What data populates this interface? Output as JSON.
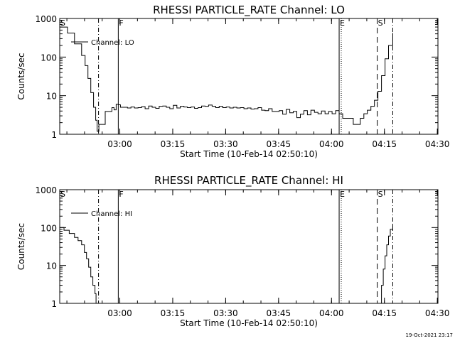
{
  "footer_timestamp": "19-Oct-2021 23:17",
  "chart_data": [
    {
      "type": "line",
      "title": "RHESSI PARTICLE_RATE Channel: LO",
      "xlabel": "Start Time (10-Feb-14 02:50:10)",
      "ylabel": "Counts/sec",
      "yscale": "log",
      "ylim": [
        1,
        1000
      ],
      "y_ticks": [
        "1",
        "10",
        "100",
        "1000"
      ],
      "x_range_minutes": [
        -7.2,
        100.0
      ],
      "x_ticks": [
        "03:00",
        "03:15",
        "03:30",
        "03:45",
        "04:00",
        "04:15",
        "04:30"
      ],
      "legend": {
        "label": "Channel: LO",
        "position": "top-left"
      },
      "markers": [
        {
          "label": "S",
          "x": -7.2,
          "style": "none"
        },
        {
          "label": "",
          "x": 3.8,
          "style": "dashdot"
        },
        {
          "label": "F",
          "x": 9.4,
          "style": "solid"
        },
        {
          "label": "E",
          "x": 72.0,
          "style": "solid"
        },
        {
          "label": "",
          "x": 72.6,
          "style": "dotted"
        },
        {
          "label": "S",
          "x": 82.8,
          "style": "dashed"
        },
        {
          "label": "",
          "x": 87.2,
          "style": "dashdot"
        }
      ],
      "series": [
        {
          "name": "Channel: LO",
          "x": [
            -7.2,
            -5.0,
            -3.0,
            -1.0,
            0.0,
            0.8,
            1.6,
            2.4,
            3.0,
            3.4,
            3.9,
            4.3,
            4.9,
            5.4,
            5.7,
            7.0,
            7.6,
            8.2,
            8.8,
            9.4,
            10.0,
            11.0,
            12.0,
            13.0,
            14.0,
            15.0,
            16.0,
            17.0,
            18.0,
            19.0,
            20.0,
            21.0,
            22.0,
            23.0,
            24.0,
            25.0,
            26.0,
            27.0,
            28.0,
            29.0,
            30.0,
            31.0,
            32.0,
            33.0,
            34.0,
            35.0,
            36.0,
            37.0,
            38.0,
            39.0,
            40.0,
            41.0,
            42.0,
            43.0,
            44.0,
            45.0,
            46.0,
            47.0,
            48.0,
            49.0,
            50.0,
            51.0,
            52.0,
            53.0,
            54.0,
            55.0,
            56.0,
            57.0,
            58.0,
            59.0,
            60.0,
            61.0,
            62.0,
            63.0,
            64.0,
            65.0,
            66.0,
            67.0,
            68.0,
            69.0,
            70.0,
            71.0,
            72.0,
            73.0,
            74.0,
            75.0,
            76.0,
            77.0,
            78.0,
            79.0,
            80.0,
            81.0,
            82.0,
            83.0,
            84.0,
            85.0,
            86.0,
            87.2
          ],
          "y": [
            600,
            420,
            220,
            110,
            60,
            28,
            12,
            5,
            2.3,
            1.2,
            1.8,
            1.8,
            1.8,
            1.8,
            3.9,
            3.9,
            4.9,
            4.3,
            6,
            5.8,
            5,
            5,
            4.8,
            5.1,
            4.8,
            4.9,
            5.2,
            4.6,
            5.4,
            5,
            4.7,
            5.3,
            5.4,
            5,
            4.6,
            5.6,
            4.8,
            5.3,
            5.1,
            4.9,
            5.1,
            4.7,
            4.9,
            5.4,
            5.3,
            5.7,
            5.3,
            4.9,
            5.3,
            4.9,
            5.1,
            4.8,
            5,
            4.8,
            4.9,
            4.6,
            4.8,
            4.5,
            4.6,
            4.9,
            4.2,
            4.1,
            4.6,
            3.9,
            3.9,
            4.1,
            3.3,
            4.4,
            3.6,
            3.9,
            2.7,
            3.3,
            4.1,
            3.2,
            4.2,
            3.7,
            3.4,
            4,
            3.4,
            3.9,
            3.4,
            4.1,
            3.4,
            2.6,
            2.6,
            2.6,
            1.8,
            1.8,
            2.6,
            3.4,
            4.2,
            5.3,
            7.6,
            13,
            33,
            90,
            200,
            420
          ]
        }
      ]
    },
    {
      "type": "line",
      "title": "RHESSI PARTICLE_RATE Channel: HI",
      "xlabel": "Start Time (10-Feb-14 02:50:10)",
      "ylabel": "Counts/sec",
      "yscale": "log",
      "ylim": [
        1,
        1000
      ],
      "y_ticks": [
        "1",
        "10",
        "100",
        "1000"
      ],
      "x_range_minutes": [
        -7.2,
        100.0
      ],
      "x_ticks": [
        "03:00",
        "03:15",
        "03:30",
        "03:45",
        "04:00",
        "04:15",
        "04:30"
      ],
      "legend": {
        "label": "Channel: HI",
        "position": "top-left"
      },
      "markers": [
        {
          "label": "S",
          "x": -7.2,
          "style": "none"
        },
        {
          "label": "",
          "x": 3.8,
          "style": "dashdot"
        },
        {
          "label": "F",
          "x": 9.4,
          "style": "solid"
        },
        {
          "label": "E",
          "x": 72.0,
          "style": "solid"
        },
        {
          "label": "",
          "x": 72.6,
          "style": "dotted"
        },
        {
          "label": "S",
          "x": 82.8,
          "style": "dashed"
        },
        {
          "label": "",
          "x": 87.2,
          "style": "dashdot"
        }
      ],
      "series": [
        {
          "name": "Channel: HI",
          "x": [
            -7.2,
            -6.0,
            -4.5,
            -3.0,
            -2.0,
            -1.0,
            -0.2,
            0.4,
            1.0,
            1.6,
            2.2,
            2.8,
            3.1
          ],
          "y": [
            100,
            85,
            70,
            55,
            45,
            35,
            22,
            15,
            9,
            5,
            3,
            1.8,
            1.0
          ]
        },
        {
          "name": "Channel: HI",
          "x": [
            83.6,
            84.0,
            84.5,
            85.0,
            85.5,
            86.0,
            86.5,
            87.2
          ],
          "y": [
            1.0,
            3,
            8,
            18,
            35,
            60,
            90,
            120
          ]
        }
      ]
    }
  ]
}
